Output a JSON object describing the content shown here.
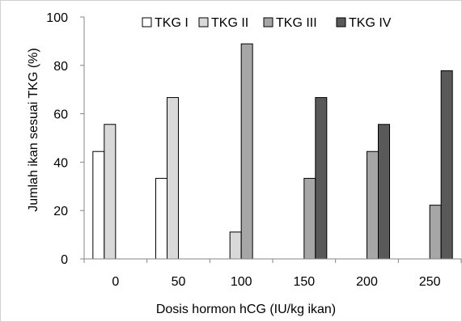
{
  "chart_data": {
    "type": "bar",
    "title": "",
    "xlabel": "Dosis hormon hCG (IU/kg ikan)",
    "ylabel": "Jumlah ikan sesuai TKG (%)",
    "categories": [
      "0",
      "50",
      "100",
      "150",
      "200",
      "250"
    ],
    "ylim": [
      0,
      100
    ],
    "yticks": [
      "0",
      "20",
      "40",
      "60",
      "80",
      "100"
    ],
    "grid": false,
    "legend_position": "top",
    "series": [
      {
        "name": "TKG I",
        "color": "#ffffff",
        "values": [
          44.4,
          33.3,
          0,
          0,
          0,
          0
        ]
      },
      {
        "name": "TKG II",
        "color": "#d9d9d9",
        "values": [
          55.6,
          66.7,
          11.1,
          0,
          0,
          0
        ]
      },
      {
        "name": "TKG III",
        "color": "#a6a6a6",
        "values": [
          0,
          0,
          88.9,
          33.3,
          44.4,
          22.2
        ]
      },
      {
        "name": "TKG IV",
        "color": "#595959",
        "values": [
          0,
          0,
          0,
          66.7,
          55.6,
          77.8
        ]
      }
    ]
  }
}
